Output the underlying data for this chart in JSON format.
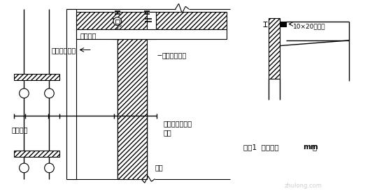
{
  "bg_color": "#ffffff",
  "labels": {
    "outer_formwork": "外侧配大模板",
    "inner_formwork": "内侧配木模板",
    "long_wood": "通长木方",
    "scaffold": "外脚手架",
    "bolt": "穿墙螺栓与外架\n拉接",
    "wall": "外墙",
    "node": "节点1  （单位：",
    "node_mm": "mm",
    "node_end": "）",
    "seam": "10×20明缝条"
  },
  "figsize": [
    5.49,
    2.74
  ],
  "dpi": 100
}
